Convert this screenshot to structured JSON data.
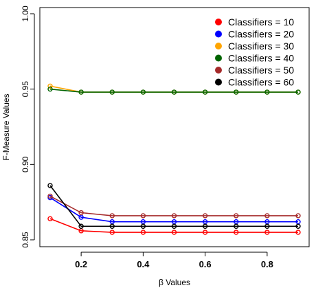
{
  "chart_data": {
    "type": "line",
    "xlabel": "β Values",
    "ylabel": "F-Measure Values",
    "xlim": [
      0.1,
      0.9
    ],
    "ylim": [
      0.85,
      1.0
    ],
    "x": [
      0.1,
      0.2,
      0.3,
      0.4,
      0.5,
      0.6,
      0.7,
      0.8,
      0.9
    ],
    "x_ticks": [
      {
        "value": 0.2,
        "label": "0.2"
      },
      {
        "value": 0.4,
        "label": "0.4"
      },
      {
        "value": 0.6,
        "label": "0.6"
      },
      {
        "value": 0.8,
        "label": "0.8"
      }
    ],
    "y_ticks": [
      {
        "value": 0.85,
        "label": "0.85"
      },
      {
        "value": 0.9,
        "label": "0.90"
      },
      {
        "value": 0.95,
        "label": "0.95"
      },
      {
        "value": 1.0,
        "label": "1.00"
      }
    ],
    "legend_position": "top-right",
    "grid": false,
    "series": [
      {
        "name": "Classifiers = 10",
        "color": "#ff0000",
        "values": [
          0.864,
          0.856,
          0.855,
          0.855,
          0.855,
          0.855,
          0.855,
          0.855,
          0.855
        ]
      },
      {
        "name": "Classifiers = 20",
        "color": "#0000ff",
        "values": [
          0.878,
          0.865,
          0.862,
          0.862,
          0.862,
          0.862,
          0.862,
          0.862,
          0.862
        ]
      },
      {
        "name": "Classifiers = 30",
        "color": "#ffa500",
        "values": [
          0.952,
          0.948,
          0.948,
          0.948,
          0.948,
          0.948,
          0.948,
          0.948,
          0.948
        ]
      },
      {
        "name": "Classifiers = 40",
        "color": "#006400",
        "values": [
          0.95,
          0.948,
          0.948,
          0.948,
          0.948,
          0.948,
          0.948,
          0.948,
          0.948
        ]
      },
      {
        "name": "Classifiers = 50",
        "color": "#a52a2a",
        "values": [
          0.879,
          0.868,
          0.866,
          0.866,
          0.866,
          0.866,
          0.866,
          0.866,
          0.866
        ]
      },
      {
        "name": "Classifiers = 60",
        "color": "#000000",
        "values": [
          0.886,
          0.859,
          0.859,
          0.859,
          0.859,
          0.859,
          0.859,
          0.859,
          0.859
        ]
      }
    ]
  }
}
